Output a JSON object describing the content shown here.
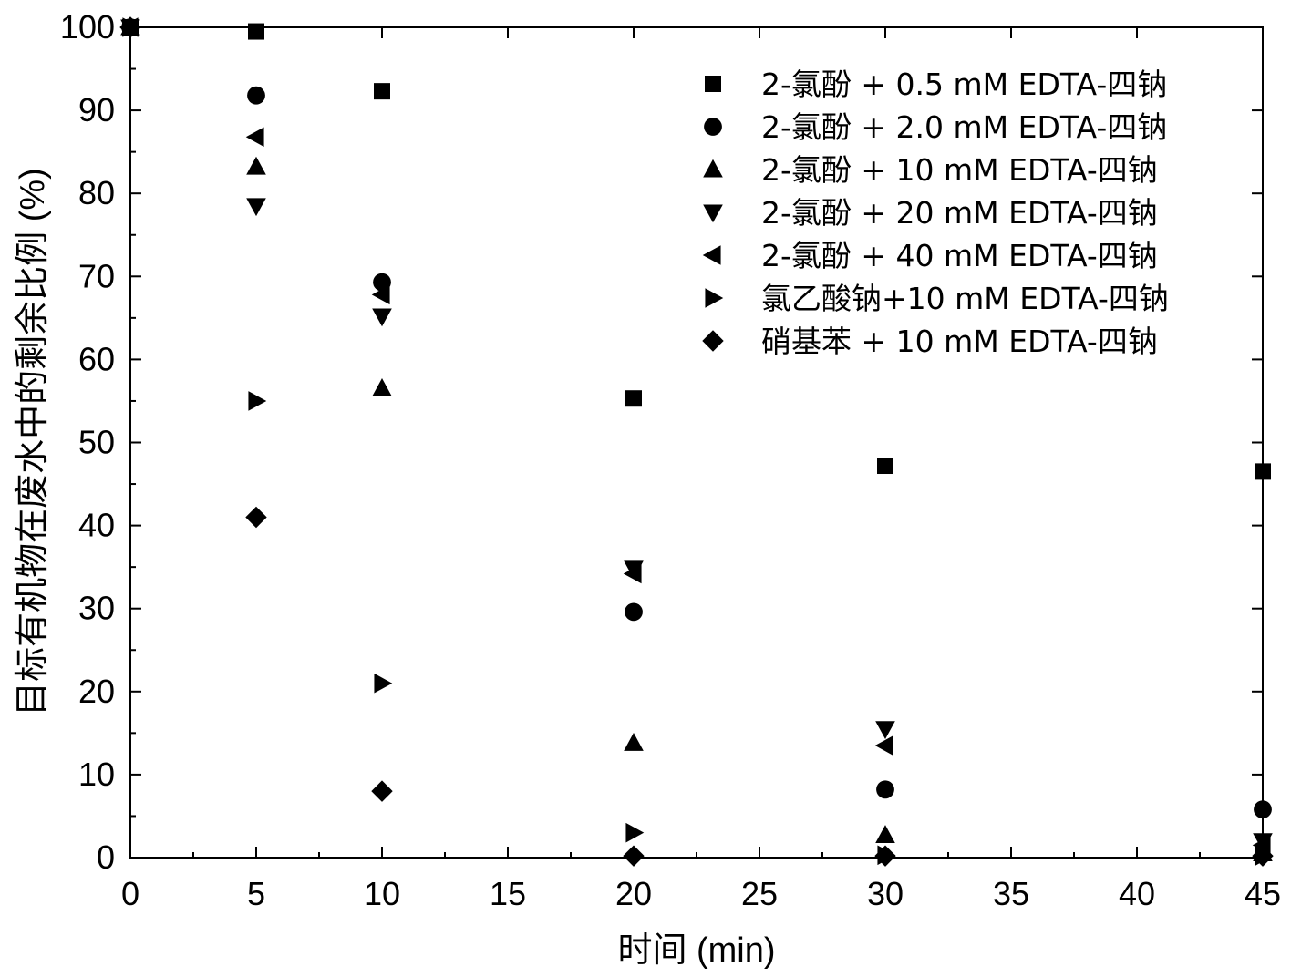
{
  "chart_data": {
    "type": "scatter",
    "xlabel": "时间 (min)",
    "ylabel": "目标有机物在废水中的剩余比例 (%)",
    "xlim": [
      0,
      45
    ],
    "ylim": [
      0,
      100
    ],
    "xticks": [
      "0",
      "5",
      "10",
      "15",
      "20",
      "25",
      "30",
      "35",
      "40",
      "45"
    ],
    "yticks": [
      "0",
      "10",
      "20",
      "30",
      "40",
      "50",
      "60",
      "70",
      "80",
      "90",
      "100"
    ],
    "legend_position": "top-right",
    "grid": false,
    "marker_color": "#000000",
    "series": [
      {
        "name": "2-氯酚 + 0.5 mM EDTA-四钠",
        "marker": "square",
        "x": [
          0,
          5,
          10,
          20,
          30,
          45
        ],
        "y": [
          100,
          99.5,
          92.3,
          55.3,
          47.2,
          46.5
        ]
      },
      {
        "name": "2-氯酚 + 2.0 mM EDTA-四钠",
        "marker": "circle",
        "x": [
          0,
          5,
          10,
          20,
          30,
          45
        ],
        "y": [
          100,
          91.8,
          69.3,
          29.6,
          8.2,
          5.8
        ]
      },
      {
        "name": "2-氯酚 + 10  mM EDTA-四钠",
        "marker": "triangle-up",
        "x": [
          0,
          5,
          10,
          20,
          30,
          45
        ],
        "y": [
          100,
          83.2,
          56.5,
          13.8,
          2.7,
          0.5
        ]
      },
      {
        "name": "2-氯酚 + 20  mM EDTA-四钠",
        "marker": "triangle-down",
        "x": [
          0,
          5,
          10,
          20,
          30,
          45
        ],
        "y": [
          100,
          78.5,
          65.2,
          34.8,
          15.5,
          2.0
        ]
      },
      {
        "name": "2-氯酚 + 40  mM EDTA-四钠",
        "marker": "triangle-left",
        "x": [
          0,
          5,
          10,
          20,
          30,
          45
        ],
        "y": [
          100,
          86.8,
          67.8,
          34.2,
          13.5,
          1.5
        ]
      },
      {
        "name": "氯乙酸钠+10 mM EDTA-四钠",
        "marker": "triangle-right",
        "x": [
          0,
          5,
          10,
          20,
          30,
          45
        ],
        "y": [
          100,
          55.0,
          21.0,
          3.0,
          0.3,
          0.2
        ]
      },
      {
        "name": "硝基苯 + 10  mM EDTA-四钠",
        "marker": "diamond",
        "x": [
          0,
          5,
          10,
          20,
          30,
          45
        ],
        "y": [
          100,
          41.0,
          8.0,
          0.2,
          0.2,
          0.2
        ]
      }
    ]
  }
}
